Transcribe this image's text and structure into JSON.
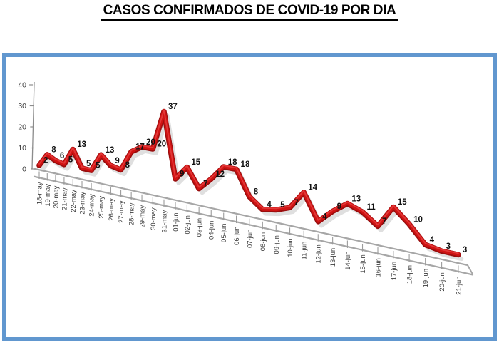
{
  "title": "CASOS CONFIRMADOS DE COVID-19 POR DIA",
  "chart_data": {
    "type": "line",
    "style": "3d-perspective-excel",
    "title": "CASOS CONFIRMADOS DE COVID-19 POR DIA",
    "categories": [
      "18-may",
      "19-may",
      "20-may",
      "21-may",
      "22-may",
      "23-may",
      "24-may",
      "25-may",
      "26-may",
      "27-may",
      "28-may",
      "29-may",
      "30-may",
      "31-may",
      "01-jun",
      "02-jun",
      "03-jun",
      "04-jun",
      "05-jun",
      "06-jun",
      "07-jun",
      "08-jun",
      "09-jun",
      "10-jun",
      "11-jun",
      "12-jun",
      "13-jun",
      "14-jun",
      "15-jun",
      "16-jun",
      "17-jun",
      "18-jun",
      "19-jun",
      "20-jun",
      "21-jun"
    ],
    "values": [
      2,
      8,
      6,
      5,
      13,
      5,
      5,
      13,
      9,
      8,
      17,
      20,
      20,
      37,
      9,
      15,
      7,
      12,
      18,
      18,
      8,
      4,
      5,
      7,
      14,
      4,
      9,
      13,
      11,
      7,
      15,
      10,
      4,
      3,
      3
    ],
    "yticks": [
      0,
      10,
      20,
      30,
      40
    ],
    "ylim": [
      0,
      40
    ],
    "xlabel": "",
    "ylabel": "",
    "grid": false,
    "legend": "none",
    "data_labels": true,
    "colors": {
      "line": "#d01313",
      "line_edge": "#9a0e0e",
      "line_highlight": "#e84545",
      "shadow": "#9f9f9f",
      "axis": "#a6a6a6",
      "y_axis": "#8c8c8c",
      "data_label": "#111111",
      "tick_label": "#3d3d3d",
      "frame_border": "#6197cf",
      "background": "#ffffff",
      "title_text": "#000000"
    }
  }
}
